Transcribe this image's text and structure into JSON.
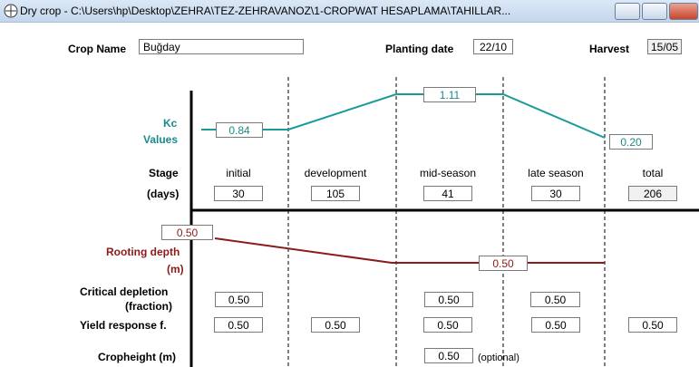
{
  "window": {
    "title": "Dry crop - C:\\Users\\hp\\Desktop\\ZEHRA\\TEZ-ZEHRAVANOZ\\1-CROPWAT HESAPLAMA\\TAHILLAR..."
  },
  "header": {
    "crop_name_label": "Crop Name",
    "crop_name": "Buğday",
    "planting_label": "Planting date",
    "planting_date": "22/10",
    "harvest_label": "Harvest",
    "harvest_date": "15/05"
  },
  "kc": {
    "label_1": "Kc",
    "label_2": "Values",
    "initial": "0.84",
    "mid": "1.11",
    "end": "0.20"
  },
  "stage": {
    "label": "Stage",
    "days_label": "(days)",
    "names": [
      "initial",
      "development",
      "mid-season",
      "late season",
      "total"
    ],
    "days": [
      "30",
      "105",
      "41",
      "30",
      "206"
    ]
  },
  "rooting": {
    "label_1": "Rooting depth",
    "label_2": "(m)",
    "start": "0.50",
    "end": "0.50"
  },
  "depletion": {
    "label_1": "Critical depletion",
    "label_2": "(fraction)",
    "initial": "0.50",
    "mid": "0.50",
    "late": "0.50"
  },
  "yield": {
    "label": "Yield response f.",
    "values": [
      "0.50",
      "0.50",
      "0.50",
      "0.50",
      "0.50"
    ]
  },
  "cropheight": {
    "label": "Cropheight (m)",
    "value": "0.50",
    "note": "(optional)"
  }
}
